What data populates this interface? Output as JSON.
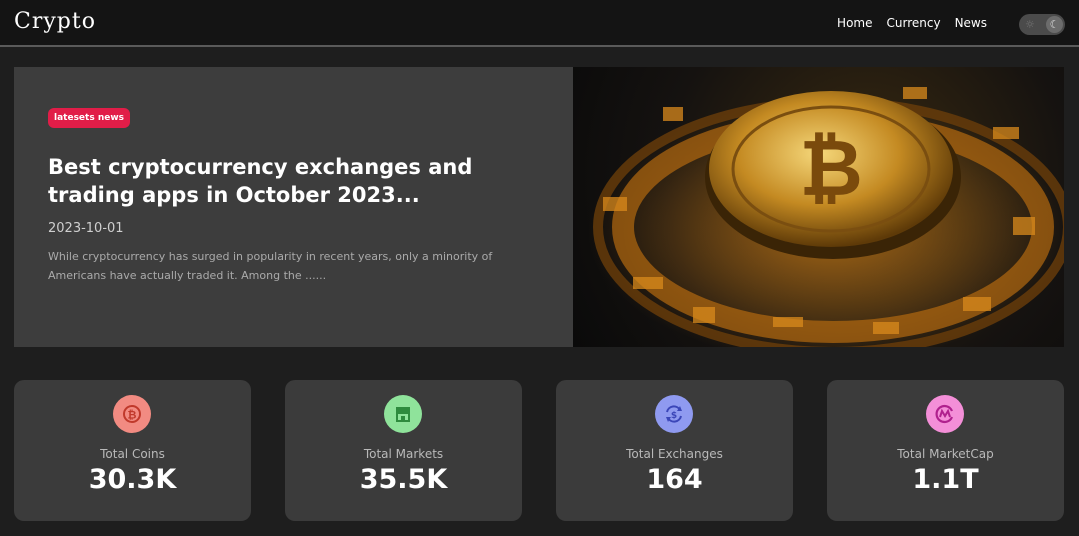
{
  "nav": {
    "brand": "Crypto",
    "links": [
      "Home",
      "Currency",
      "News"
    ],
    "theme_toggle": {
      "sun_icon": "sun-icon",
      "moon_icon": "moon-icon"
    }
  },
  "hero": {
    "badge": "latesets news",
    "title": "Best cryptocurrency exchanges and trading apps in October 2023...",
    "date": "2023-10-01",
    "description": "While cryptocurrency has surged in popularity in recent years, only a minority of Americans have actually traded it. Among the ......",
    "image_icon": "bitcoin-coin-image"
  },
  "stats": [
    {
      "label": "Total Coins",
      "value": "30.3K",
      "icon": "bitcoin-icon",
      "color": "#f28b82"
    },
    {
      "label": "Total Markets",
      "value": "35.5K",
      "icon": "store-icon",
      "color": "#8fe39b"
    },
    {
      "label": "Total Exchanges",
      "value": "164",
      "icon": "exchange-icon",
      "color": "#8f9af0"
    },
    {
      "label": "Total MarketCap",
      "value": "1.1T",
      "icon": "marketcap-icon",
      "color": "#f48fd8"
    }
  ]
}
